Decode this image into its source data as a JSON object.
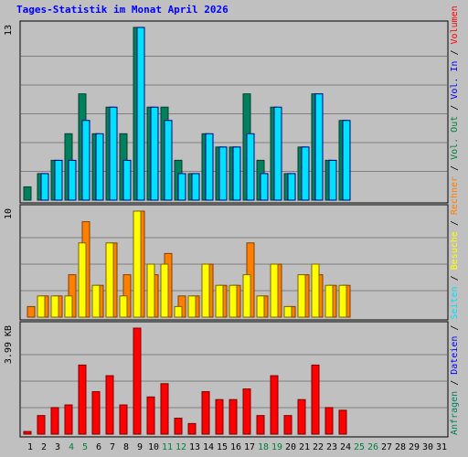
{
  "title": "Tages-Statistik im Monat April 2026",
  "colors": {
    "background": "#c0c0c0",
    "title": "#0000ff",
    "anfragen": "#00805c",
    "dateien": "#0000ff",
    "seiten": "#00e0ff",
    "besuche": "#ffff00",
    "rechner": "#ff8000",
    "volumen": "#ff0000",
    "weekday": "#000000",
    "weekend": "#008040"
  },
  "right_legend": [
    {
      "text": "Anfragen",
      "color": "#00805c"
    },
    {
      "text": "/",
      "color": "#000000"
    },
    {
      "text": "Dateien",
      "color": "#0000ff"
    },
    {
      "text": "/",
      "color": "#000000"
    },
    {
      "text": "Seiten",
      "color": "#00e0ff"
    },
    {
      "text": "/",
      "color": "#000000"
    },
    {
      "text": "Besuche",
      "color": "#ffff00"
    },
    {
      "text": "/",
      "color": "#000000"
    },
    {
      "text": "Rechner",
      "color": "#ff8000"
    },
    {
      "text": "/",
      "color": "#000000"
    },
    {
      "text": "Vol. Out",
      "color": "#008040"
    },
    {
      "text": "/",
      "color": "#000000"
    },
    {
      "text": "Vol. In",
      "color": "#0000ff"
    },
    {
      "text": "/",
      "color": "#000000"
    },
    {
      "text": "Volumen",
      "color": "#ff0000"
    }
  ],
  "chart_data": [
    {
      "type": "bar",
      "panel": "top",
      "y_max_label": "13",
      "ylim": [
        0,
        13
      ],
      "categories": [
        "1",
        "2",
        "3",
        "4",
        "5",
        "6",
        "7",
        "8",
        "9",
        "10",
        "11",
        "12",
        "13",
        "14",
        "15",
        "16",
        "17",
        "18",
        "19",
        "20",
        "21",
        "22",
        "23",
        "24",
        "25",
        "26",
        "27",
        "28",
        "29",
        "30",
        "31"
      ],
      "weekend_days": [
        4,
        5,
        11,
        12,
        18,
        19,
        25,
        26
      ],
      "series": [
        {
          "key": "anfragen",
          "values": [
            1,
            2,
            3,
            5,
            8,
            5,
            7,
            5,
            13,
            7,
            7,
            3,
            2,
            5,
            4,
            4,
            8,
            3,
            7,
            2,
            4,
            8,
            3,
            6,
            0,
            0,
            0,
            0,
            0,
            0,
            0
          ]
        },
        {
          "key": "seiten",
          "values": [
            0,
            2,
            3,
            3,
            6,
            5,
            7,
            3,
            13,
            7,
            6,
            2,
            2,
            5,
            4,
            4,
            5,
            2,
            7,
            2,
            4,
            8,
            3,
            6,
            0,
            0,
            0,
            0,
            0,
            0,
            0
          ]
        }
      ]
    },
    {
      "type": "bar",
      "panel": "middle",
      "y_max_label": "10",
      "ylim": [
        0,
        10
      ],
      "categories": [
        "1",
        "2",
        "3",
        "4",
        "5",
        "6",
        "7",
        "8",
        "9",
        "10",
        "11",
        "12",
        "13",
        "14",
        "15",
        "16",
        "17",
        "18",
        "19",
        "20",
        "21",
        "22",
        "23",
        "24",
        "25",
        "26",
        "27",
        "28",
        "29",
        "30",
        "31"
      ],
      "series": [
        {
          "key": "besuche",
          "values": [
            0,
            2,
            2,
            2,
            7,
            3,
            7,
            2,
            10,
            5,
            5,
            1,
            2,
            5,
            3,
            3,
            4,
            2,
            5,
            1,
            4,
            5,
            3,
            3,
            0,
            0,
            0,
            0,
            0,
            0,
            0
          ]
        },
        {
          "key": "rechner",
          "values": [
            1,
            2,
            2,
            4,
            9,
            3,
            7,
            4,
            10,
            4,
            6,
            2,
            2,
            5,
            3,
            3,
            7,
            2,
            5,
            1,
            4,
            4,
            3,
            3,
            0,
            0,
            0,
            0,
            0,
            0,
            0
          ]
        }
      ]
    },
    {
      "type": "bar",
      "panel": "bottom",
      "y_max_label": "3.99 KB",
      "ylim": [
        0,
        3.99
      ],
      "categories": [
        "1",
        "2",
        "3",
        "4",
        "5",
        "6",
        "7",
        "8",
        "9",
        "10",
        "11",
        "12",
        "13",
        "14",
        "15",
        "16",
        "17",
        "18",
        "19",
        "20",
        "21",
        "22",
        "23",
        "24",
        "25",
        "26",
        "27",
        "28",
        "29",
        "30",
        "31"
      ],
      "series": [
        {
          "key": "volumen",
          "values": [
            0.1,
            0.7,
            1.0,
            1.1,
            2.6,
            1.6,
            2.2,
            1.1,
            3.99,
            1.4,
            1.9,
            0.6,
            0.4,
            1.6,
            1.3,
            1.3,
            1.7,
            0.7,
            2.2,
            0.7,
            1.3,
            2.6,
            1.0,
            0.9,
            0,
            0,
            0,
            0,
            0,
            0,
            0
          ]
        }
      ]
    }
  ]
}
